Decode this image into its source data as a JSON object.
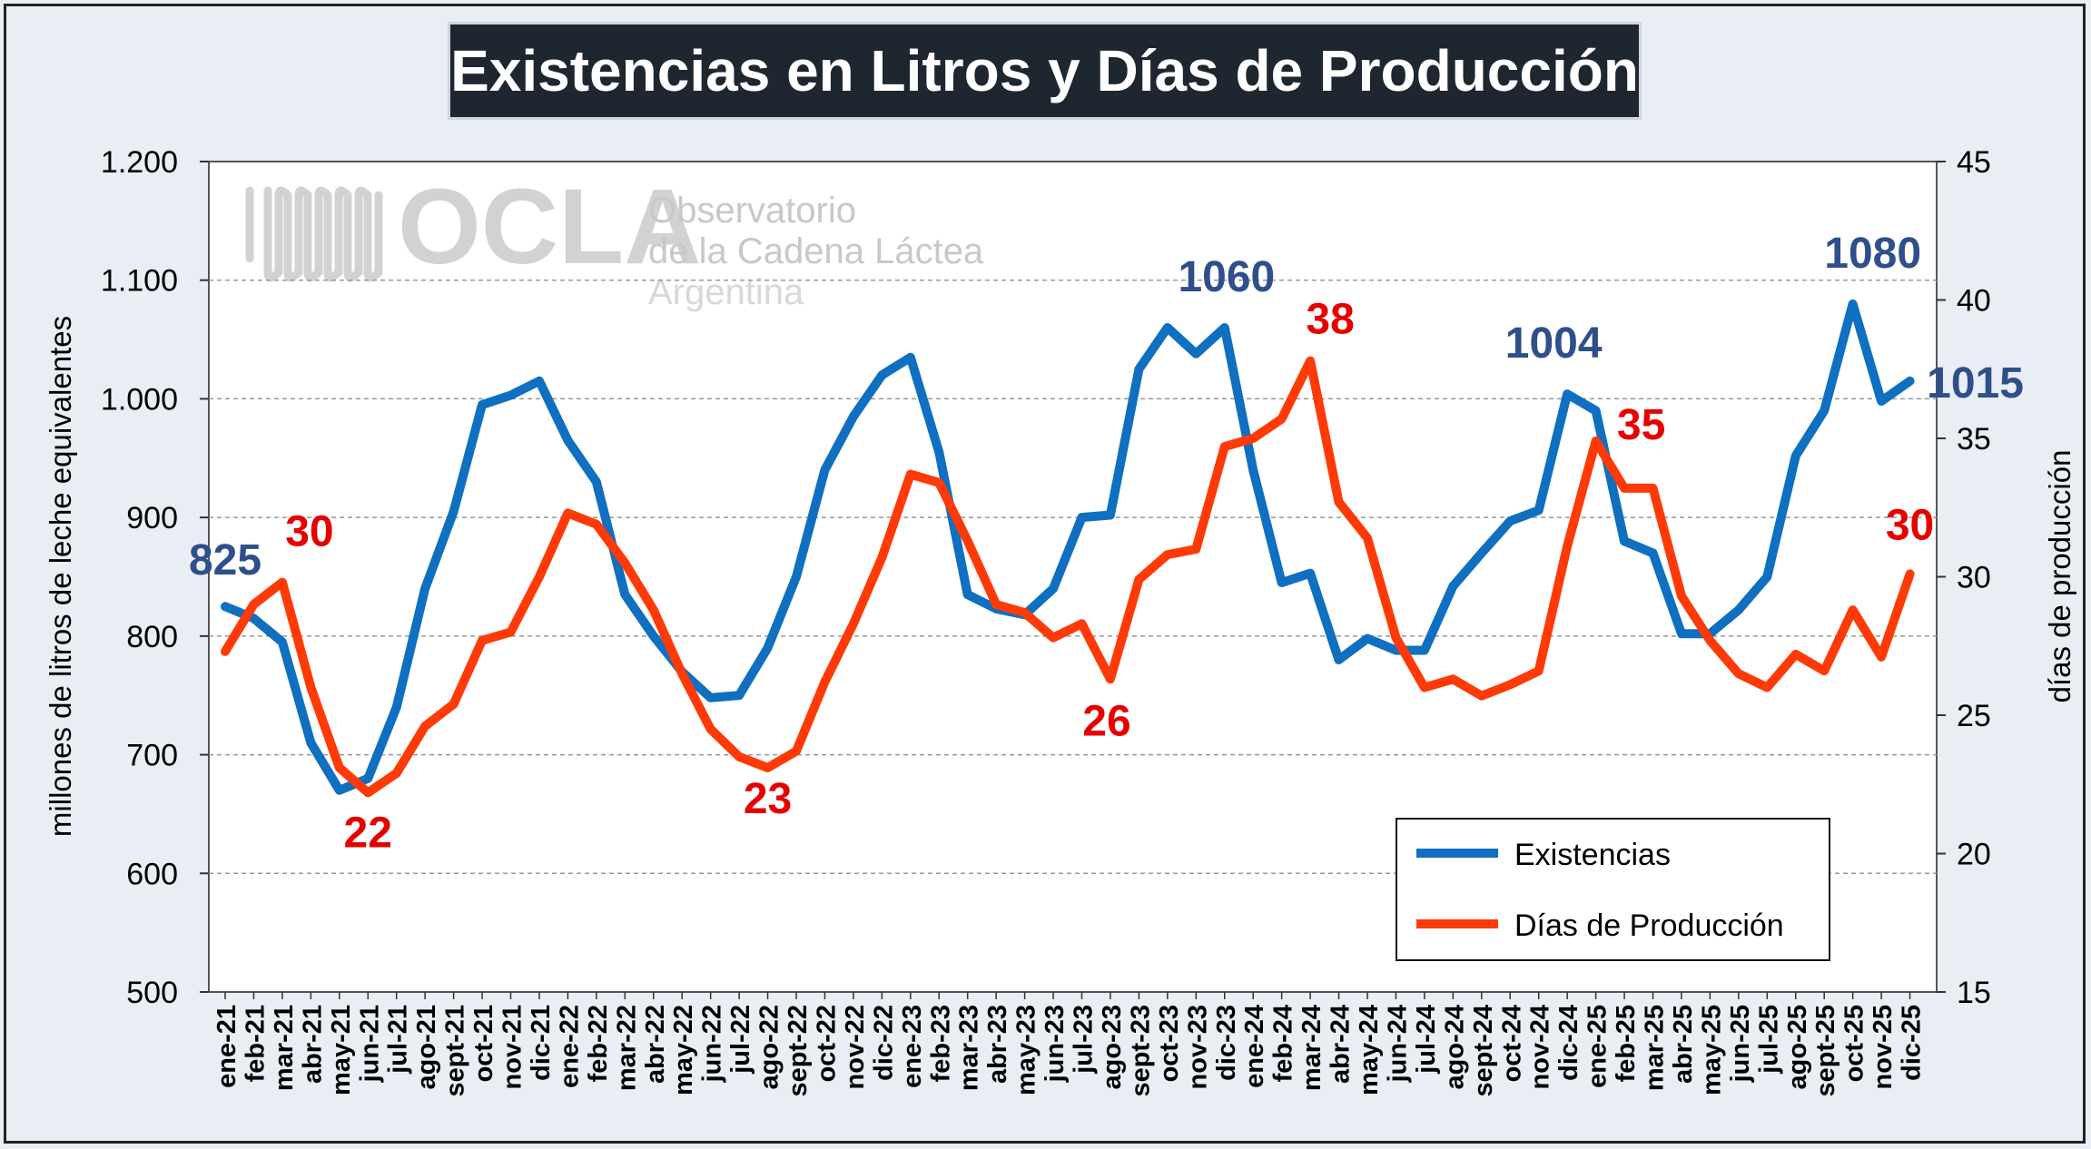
{
  "title": "Existencias en Litros y Días de Producción",
  "watermark": {
    "brand": "OCLA",
    "line1": "Observatorio",
    "line2": "de la Cadena Láctea",
    "line3": "Argentina"
  },
  "colors": {
    "existencias": "#0f6fc0",
    "dias": "#ff3a06",
    "label_blue": "#2f4f8a",
    "label_red": "#e60000"
  },
  "chart_data": {
    "type": "line",
    "ylabel": "millones de litros de leche equivalentes",
    "y2label": "días de producción",
    "ylim": [
      500,
      1200
    ],
    "y2lim": [
      15,
      45
    ],
    "yticks": [
      "500",
      "600",
      "700",
      "800",
      "900",
      "1.000",
      "1.100",
      "1.200"
    ],
    "y2ticks": [
      "15",
      "20",
      "25",
      "30",
      "35",
      "40",
      "45"
    ],
    "grid": true,
    "legend_position": "bottom-right",
    "categories": [
      "ene-21",
      "feb-21",
      "mar-21",
      "abr-21",
      "may-21",
      "jun-21",
      "jul-21",
      "ago-21",
      "sept-21",
      "oct-21",
      "nov-21",
      "dic-21",
      "ene-22",
      "feb-22",
      "mar-22",
      "abr-22",
      "may-22",
      "jun-22",
      "jul-22",
      "ago-22",
      "sept-22",
      "oct-22",
      "nov-22",
      "dic-22",
      "ene-23",
      "feb-23",
      "mar-23",
      "abr-23",
      "may-23",
      "jun-23",
      "jul-23",
      "ago-23",
      "sept-23",
      "oct-23",
      "nov-23",
      "dic-23",
      "ene-24",
      "feb-24",
      "mar-24",
      "abr-24",
      "may-24",
      "jun-24",
      "jul-24",
      "ago-24",
      "sept-24",
      "oct-24",
      "nov-24",
      "dic-24",
      "ene-25",
      "feb-25",
      "mar-25",
      "abr-25",
      "may-25",
      "jun-25",
      "jul-25",
      "ago-25",
      "sept-25",
      "oct-25",
      "nov-25",
      "dic-25"
    ],
    "series": [
      {
        "name": "Existencias",
        "axis": "left",
        "values": [
          825,
          815,
          795,
          710,
          670,
          680,
          740,
          840,
          905,
          995,
          1003,
          1015,
          965,
          930,
          835,
          800,
          770,
          748,
          750,
          790,
          850,
          940,
          985,
          1020,
          1035,
          955,
          835,
          823,
          818,
          840,
          900,
          902,
          1025,
          1060,
          1038,
          1060,
          940,
          845,
          853,
          780,
          798,
          788,
          788,
          842,
          870,
          897,
          906,
          1004,
          990,
          880,
          870,
          802,
          802,
          822,
          850,
          952,
          990,
          1080,
          998,
          1015
        ]
      },
      {
        "name": "Días de Producción",
        "axis": "right",
        "values": [
          27.3,
          29,
          29.8,
          26,
          23.1,
          22.2,
          22.9,
          24.6,
          25.4,
          27.7,
          28,
          30,
          32.3,
          31.9,
          30.5,
          28.8,
          26.5,
          24.5,
          23.5,
          23.1,
          23.7,
          26.2,
          28.3,
          30.7,
          33.7,
          33.4,
          31.3,
          29,
          28.7,
          27.8,
          28.3,
          26.3,
          29.9,
          30.8,
          31,
          34.7,
          35,
          35.7,
          37.8,
          32.7,
          31.4,
          27.8,
          26,
          26.3,
          25.7,
          26.1,
          26.6,
          31.1,
          34.9,
          33.2,
          33.2,
          29.3,
          27.7,
          26.5,
          26,
          27.2,
          26.6,
          28.8,
          27.1,
          30.1
        ]
      }
    ],
    "annotations": [
      {
        "series": 0,
        "index": 0,
        "text": "825"
      },
      {
        "series": 0,
        "index": 33,
        "text": "1060"
      },
      {
        "series": 0,
        "index": 47,
        "text": "1004"
      },
      {
        "series": 0,
        "index": 57,
        "text": "1080"
      },
      {
        "series": 0,
        "index": 59,
        "text": "1015"
      },
      {
        "series": 1,
        "index": 2,
        "text": "30"
      },
      {
        "series": 1,
        "index": 5,
        "text": "22"
      },
      {
        "series": 1,
        "index": 19,
        "text": "23"
      },
      {
        "series": 1,
        "index": 31,
        "text": "26"
      },
      {
        "series": 1,
        "index": 38,
        "text": "38"
      },
      {
        "series": 1,
        "index": 48,
        "text": "35"
      },
      {
        "series": 1,
        "index": 59,
        "text": "30"
      }
    ]
  }
}
